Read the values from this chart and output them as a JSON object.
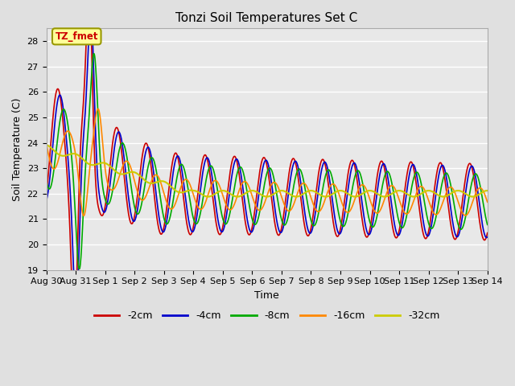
{
  "title": "Tonzi Soil Temperatures Set C",
  "xlabel": "Time",
  "ylabel": "Soil Temperature (C)",
  "annotation": "TZ_fmet",
  "annotation_color": "#cc0000",
  "annotation_bg": "#ffff99",
  "annotation_border": "#999900",
  "ylim": [
    19.0,
    28.5
  ],
  "yticks": [
    19.0,
    20.0,
    21.0,
    22.0,
    23.0,
    24.0,
    25.0,
    26.0,
    27.0,
    28.0
  ],
  "series": [
    {
      "label": "-2cm",
      "color": "#cc0000",
      "lw": 1.2
    },
    {
      "label": "-4cm",
      "color": "#0000cc",
      "lw": 1.2
    },
    {
      "label": "-8cm",
      "color": "#00aa00",
      "lw": 1.2
    },
    {
      "label": "-16cm",
      "color": "#ff8800",
      "lw": 1.2
    },
    {
      "label": "-32cm",
      "color": "#cccc00",
      "lw": 1.5
    }
  ],
  "bg_color": "#e0e0e0",
  "plot_bg": "#e8e8e8",
  "grid_color": "#ffffff",
  "x_tick_labels": [
    "Aug 30",
    "Aug 31",
    "Sep 1",
    "Sep 2",
    "Sep 3",
    "Sep 4",
    "Sep 5",
    "Sep 6",
    "Sep 7",
    "Sep 8",
    "Sep 9",
    "Sep 10",
    "Sep 11",
    "Sep 12",
    "Sep 13",
    "Sep 14"
  ],
  "legend_ncol": 5
}
